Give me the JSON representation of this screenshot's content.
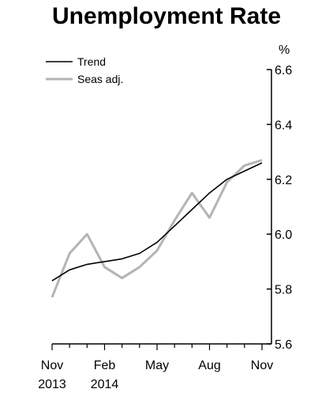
{
  "chart_data": {
    "type": "line",
    "title": "Unemployment Rate",
    "y_unit_label": "%",
    "ylim": [
      5.6,
      6.6
    ],
    "y_ticks": [
      "5.6",
      "5.8",
      "6.0",
      "6.2",
      "6.4",
      "6.6"
    ],
    "x_ticks": [
      {
        "month": "Nov",
        "year": "2013"
      },
      {
        "month": "Feb",
        "year": "2014"
      },
      {
        "month": "May",
        "year": ""
      },
      {
        "month": "Aug",
        "year": ""
      },
      {
        "month": "Nov",
        "year": ""
      }
    ],
    "x": [
      "Nov 2013",
      "Dec 2013",
      "Jan 2014",
      "Feb 2014",
      "Mar 2014",
      "Apr 2014",
      "May 2014",
      "Jun 2014",
      "Jul 2014",
      "Aug 2014",
      "Sep 2014",
      "Oct 2014",
      "Nov 2014"
    ],
    "series": [
      {
        "name": "Trend",
        "color": "#000000",
        "values": [
          5.83,
          5.87,
          5.89,
          5.9,
          5.91,
          5.93,
          5.97,
          6.03,
          6.09,
          6.15,
          6.2,
          6.23,
          6.26
        ]
      },
      {
        "name": "Seas adj.",
        "color": "#b4b4b4",
        "values": [
          5.77,
          5.93,
          6.0,
          5.88,
          5.84,
          5.88,
          5.94,
          6.05,
          6.15,
          6.06,
          6.19,
          6.25,
          6.27
        ]
      }
    ],
    "legend_position": "top-left",
    "grid": false
  }
}
